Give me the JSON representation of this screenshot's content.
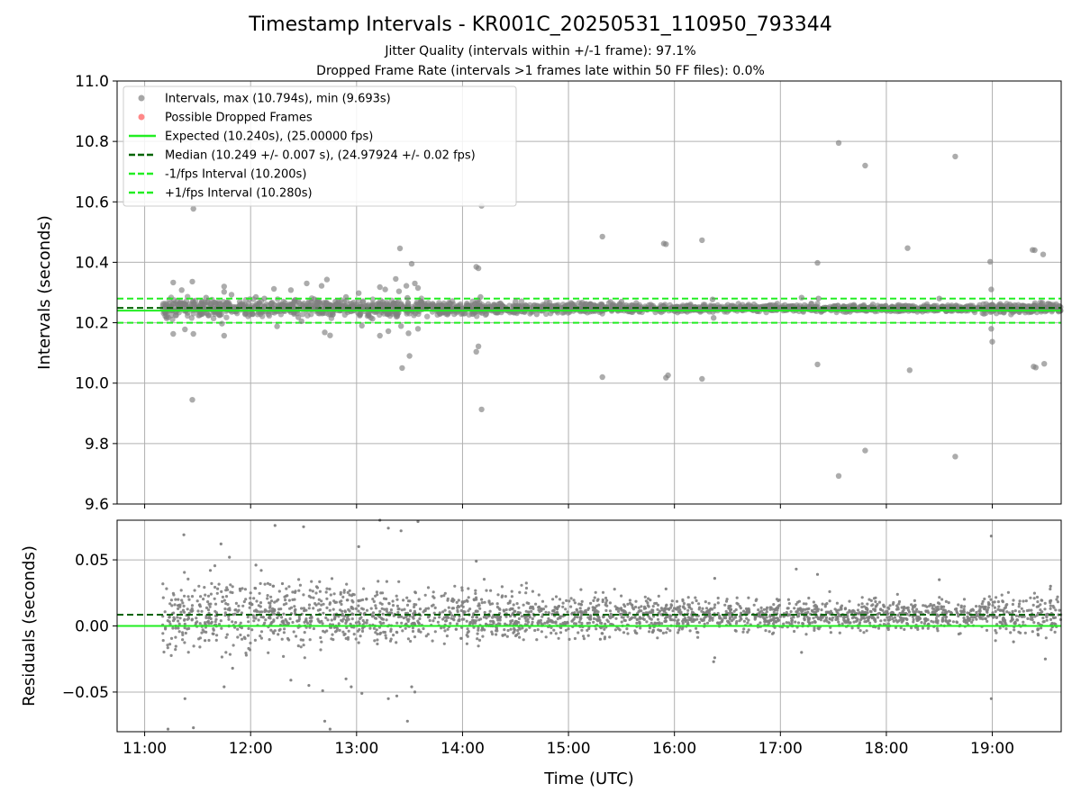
{
  "title": "Timestamp Intervals - KR001C_20250531_110950_793344",
  "subtitle_1": "Jitter Quality (intervals within +/-1 frame): 97.1%",
  "subtitle_2": "Dropped Frame Rate (intervals >1 frames late within 50 FF files): 0.0%",
  "colors": {
    "points": "#808080",
    "dropped": "#ff5555",
    "expected": "#22ee22",
    "median": "#006400",
    "fps_band": "#22ee22",
    "grid": "#b0b0b0"
  },
  "chart_data": [
    {
      "type": "scatter",
      "panel": "top",
      "xlabel": "",
      "ylabel": "Intervals (seconds)",
      "xlim_hours": [
        10.74,
        19.65
      ],
      "ylim": [
        9.6,
        11.0
      ],
      "xtick_values": [
        11,
        12,
        13,
        14,
        15,
        16,
        17,
        18,
        19
      ],
      "yticks": [
        9.6,
        9.8,
        10.0,
        10.2,
        10.4,
        10.6,
        10.8,
        11.0
      ],
      "ytick_labels": [
        "9.6",
        "9.8",
        "10.0",
        "10.2",
        "10.4",
        "10.6",
        "10.8",
        "11.0"
      ],
      "grid": true,
      "legend_position": "top-left",
      "legend": [
        {
          "label": "Intervals, max (10.794s), min (9.693s)",
          "kind": "point",
          "color": "#808080"
        },
        {
          "label": "Possible Dropped Frames",
          "kind": "point",
          "color": "#ff5555"
        },
        {
          "label": "Expected (10.240s), (25.00000 fps)",
          "kind": "line",
          "color": "#22ee22"
        },
        {
          "label": "Median (10.249 +/- 0.007 s), (24.97924 +/- 0.02 fps)",
          "kind": "dashed",
          "color": "#006400"
        },
        {
          "label": "-1/fps Interval (10.200s)",
          "kind": "dashed",
          "color": "#22ee22"
        },
        {
          "label": "+1/fps Interval (10.280s)",
          "kind": "dashed",
          "color": "#22ee22"
        }
      ],
      "hlines": [
        {
          "name": "Expected",
          "y": 10.24,
          "style": "solid",
          "color": "#22ee22"
        },
        {
          "name": "Median",
          "y": 10.249,
          "style": "dashed",
          "color": "#006400"
        },
        {
          "name": "-1/fps Interval",
          "y": 10.2,
          "style": "dashed",
          "color": "#22ee22"
        },
        {
          "name": "+1/fps Interval",
          "y": 10.28,
          "style": "dashed",
          "color": "#22ee22"
        }
      ],
      "series": [
        {
          "name": "Intervals",
          "points": [
            [
              11.27,
              10.333
            ],
            [
              11.27,
              10.163
            ],
            [
              11.35,
              10.308
            ],
            [
              11.38,
              10.178
            ],
            [
              11.45,
              10.336
            ],
            [
              11.46,
              10.163
            ],
            [
              11.46,
              10.577
            ],
            [
              11.45,
              9.945
            ],
            [
              11.58,
              10.283
            ],
            [
              11.6,
              10.224
            ],
            [
              11.7,
              10.262
            ],
            [
              11.73,
              10.197
            ],
            [
              11.75,
              10.32
            ],
            [
              11.75,
              10.302
            ],
            [
              11.75,
              10.157
            ],
            [
              11.82,
              10.293
            ],
            [
              11.9,
              10.26
            ],
            [
              11.95,
              10.228
            ],
            [
              12.05,
              10.285
            ],
            [
              12.13,
              10.28
            ],
            [
              12.22,
              10.312
            ],
            [
              12.25,
              10.188
            ],
            [
              12.3,
              10.26
            ],
            [
              12.38,
              10.308
            ],
            [
              12.45,
              10.218
            ],
            [
              12.48,
              10.205
            ],
            [
              12.53,
              10.33
            ],
            [
              12.6,
              10.278
            ],
            [
              12.62,
              10.255
            ],
            [
              12.67,
              10.322
            ],
            [
              12.7,
              10.168
            ],
            [
              12.72,
              10.343
            ],
            [
              12.75,
              10.158
            ],
            [
              12.8,
              10.27
            ],
            [
              12.9,
              10.285
            ],
            [
              13.02,
              10.298
            ],
            [
              13.05,
              10.19
            ],
            [
              13.1,
              10.256
            ],
            [
              13.15,
              10.213
            ],
            [
              13.22,
              10.318
            ],
            [
              13.22,
              10.157
            ],
            [
              13.27,
              10.31
            ],
            [
              13.3,
              10.172
            ],
            [
              13.35,
              10.265
            ],
            [
              13.37,
              10.345
            ],
            [
              13.4,
              10.304
            ],
            [
              13.41,
              10.446
            ],
            [
              13.42,
              10.189
            ],
            [
              13.43,
              10.05
            ],
            [
              13.47,
              10.322
            ],
            [
              13.48,
              10.282
            ],
            [
              13.49,
              10.165
            ],
            [
              13.5,
              10.09
            ],
            [
              13.52,
              10.395
            ],
            [
              13.55,
              10.33
            ],
            [
              13.58,
              10.315
            ],
            [
              13.58,
              10.18
            ],
            [
              13.61,
              10.27
            ],
            [
              13.72,
              10.26
            ],
            [
              14.13,
              10.385
            ],
            [
              14.13,
              10.104
            ],
            [
              14.15,
              10.38
            ],
            [
              14.15,
              10.122
            ],
            [
              14.17,
              10.285
            ],
            [
              14.18,
              10.587
            ],
            [
              14.18,
              9.913
            ],
            [
              14.3,
              10.26
            ],
            [
              14.5,
              10.27
            ],
            [
              14.7,
              10.228
            ],
            [
              15.32,
              10.485
            ],
            [
              15.32,
              10.02
            ],
            [
              15.5,
              10.27
            ],
            [
              15.9,
              10.462
            ],
            [
              15.92,
              10.46
            ],
            [
              15.92,
              10.018
            ],
            [
              15.94,
              10.026
            ],
            [
              16.26,
              10.473
            ],
            [
              16.26,
              10.014
            ],
            [
              16.36,
              10.277
            ],
            [
              16.37,
              10.216
            ],
            [
              16.7,
              10.26
            ],
            [
              17.2,
              10.283
            ],
            [
              17.35,
              10.398
            ],
            [
              17.35,
              10.062
            ],
            [
              17.36,
              10.28
            ],
            [
              17.55,
              10.795
            ],
            [
              17.55,
              9.693
            ],
            [
              17.8,
              10.72
            ],
            [
              17.8,
              9.777
            ],
            [
              18.2,
              10.447
            ],
            [
              18.22,
              10.043
            ],
            [
              18.5,
              10.28
            ],
            [
              18.65,
              10.75
            ],
            [
              18.65,
              9.757
            ],
            [
              18.98,
              10.402
            ],
            [
              18.99,
              10.31
            ],
            [
              18.99,
              10.18
            ],
            [
              19.0,
              10.137
            ],
            [
              19.38,
              10.441
            ],
            [
              19.4,
              10.44
            ],
            [
              19.39,
              10.055
            ],
            [
              19.41,
              10.052
            ],
            [
              19.48,
              10.426
            ],
            [
              19.49,
              10.064
            ]
          ]
        },
        {
          "name": "Possible Dropped Frames",
          "points": []
        }
      ],
      "dense_band": {
        "x_range": [
          11.17,
          19.65
        ],
        "y_center": 10.248,
        "spread_near_start": 0.035,
        "spread_near_end": 0.012
      }
    },
    {
      "type": "scatter",
      "panel": "bottom",
      "xlabel": "Time (UTC)",
      "ylabel": "Residuals (seconds)",
      "xlim_hours": [
        10.74,
        19.65
      ],
      "ylim": [
        -0.08,
        0.08
      ],
      "xtick_values": [
        11,
        12,
        13,
        14,
        15,
        16,
        17,
        18,
        19
      ],
      "xtick_labels": [
        "11:00",
        "12:00",
        "13:00",
        "14:00",
        "15:00",
        "16:00",
        "17:00",
        "18:00",
        "19:00"
      ],
      "yticks": [
        -0.05,
        0.0,
        0.05
      ],
      "ytick_labels": [
        "−0.05",
        "0.00",
        "0.05"
      ],
      "grid": true,
      "hlines": [
        {
          "name": "Expected",
          "y": 0.0,
          "style": "solid",
          "color": "#22ee22"
        },
        {
          "name": "Median",
          "y": 0.0085,
          "style": "dashed",
          "color": "#006400"
        }
      ],
      "series": [
        {
          "name": "Residuals",
          "points": [
            [
              11.22,
              -0.078
            ],
            [
              11.37,
              0.069
            ],
            [
              11.38,
              -0.055
            ],
            [
              11.46,
              -0.077
            ],
            [
              11.57,
              -0.011
            ],
            [
              11.62,
              0.042
            ],
            [
              11.72,
              0.062
            ],
            [
              11.75,
              -0.046
            ],
            [
              11.8,
              0.052
            ],
            [
              11.83,
              -0.032
            ],
            [
              11.9,
              0.028
            ],
            [
              12.0,
              0.025
            ],
            [
              12.05,
              0.046
            ],
            [
              12.1,
              0.042
            ],
            [
              12.23,
              0.076
            ],
            [
              12.3,
              0.032
            ],
            [
              12.38,
              -0.041
            ],
            [
              12.5,
              0.075
            ],
            [
              12.55,
              -0.045
            ],
            [
              12.68,
              -0.049
            ],
            [
              12.7,
              -0.072
            ],
            [
              12.75,
              -0.078
            ],
            [
              12.85,
              0.024
            ],
            [
              12.9,
              -0.04
            ],
            [
              12.95,
              -0.046
            ],
            [
              13.02,
              0.06
            ],
            [
              13.05,
              -0.051
            ],
            [
              13.22,
              0.08
            ],
            [
              13.3,
              -0.055
            ],
            [
              13.3,
              0.074
            ],
            [
              13.38,
              -0.053
            ],
            [
              13.42,
              0.072
            ],
            [
              13.48,
              -0.072
            ],
            [
              13.52,
              -0.046
            ],
            [
              13.55,
              -0.05
            ],
            [
              13.58,
              0.079
            ],
            [
              14.13,
              0.049
            ],
            [
              14.18,
              0.02
            ],
            [
              15.3,
              -0.01
            ],
            [
              15.92,
              0.028
            ],
            [
              16.38,
              0.036
            ],
            [
              16.38,
              -0.024
            ],
            [
              16.37,
              -0.027
            ],
            [
              17.15,
              0.043
            ],
            [
              17.2,
              -0.02
            ],
            [
              17.35,
              0.039
            ],
            [
              18.5,
              0.035
            ],
            [
              18.99,
              0.068
            ],
            [
              18.99,
              -0.055
            ],
            [
              19.2,
              -0.012
            ],
            [
              19.5,
              -0.025
            ],
            [
              19.55,
              0.03
            ]
          ]
        }
      ],
      "dense_band": {
        "x_range": [
          11.17,
          19.65
        ],
        "y_center": 0.008,
        "spread_near_start": 0.03,
        "spread_near_end": 0.013
      }
    }
  ]
}
